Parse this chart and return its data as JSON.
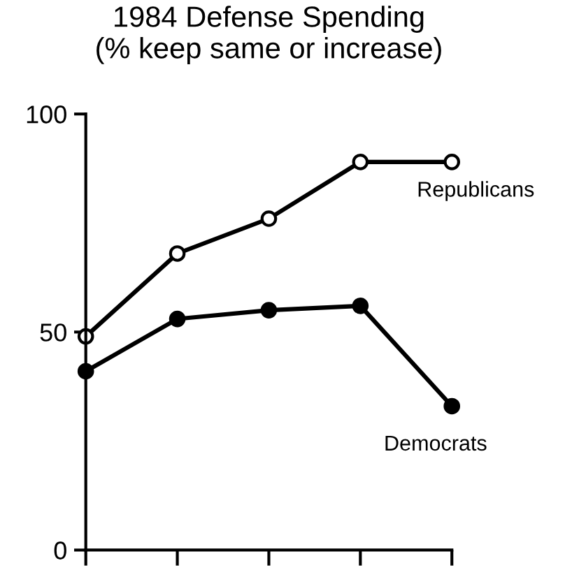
{
  "chart_data": {
    "type": "line",
    "title": "1984 Defense Spending\n(% keep same or increase)",
    "categories": [
      null,
      null,
      null,
      null,
      null
    ],
    "series": [
      {
        "name": "Republicans",
        "color": "#000000",
        "values": [
          49,
          68,
          76,
          89,
          89
        ]
      },
      {
        "name": "Democrats",
        "color": "#000000",
        "values": [
          41,
          53,
          55,
          56,
          33
        ]
      }
    ],
    "ylim": [
      0,
      100
    ],
    "yticks": [
      0,
      50,
      100
    ],
    "marker": "circle",
    "line_style": "solid",
    "grid": false,
    "legend": false
  }
}
